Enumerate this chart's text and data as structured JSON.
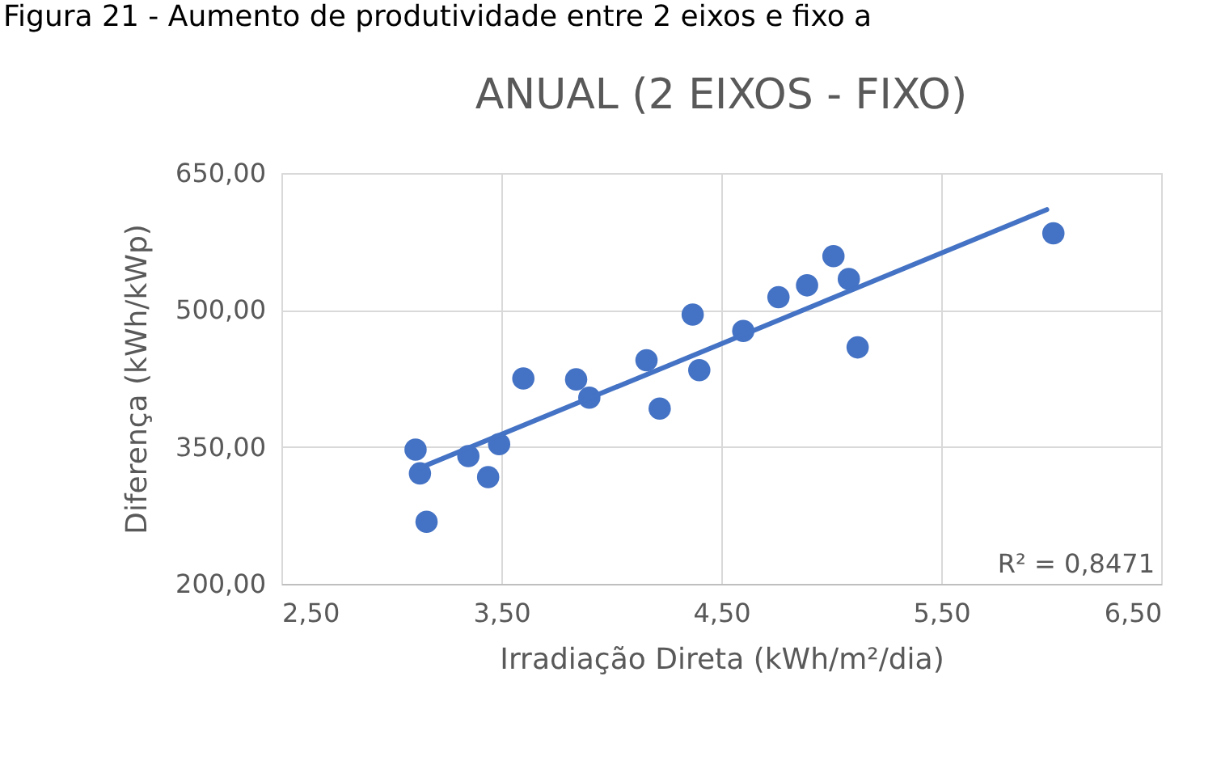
{
  "chart_data": {
    "type": "scatter",
    "title": "ANUAL (2 EIXOS - FIXO)",
    "xlabel": "Irradiação Direta (kWh/m²/dia)",
    "ylabel": "Diferença (kWh/kWp)",
    "annotations": [
      "Figura 21 - Aumento de produtividade entre 2 eixos e fixo a",
      "R² = 0,8471"
    ],
    "series": [
      {
        "color": "#4472c4",
        "marker": "circle",
        "x": [
          3.11,
          3.13,
          3.16,
          3.35,
          3.44,
          3.49,
          3.6,
          3.84,
          3.9,
          4.16,
          4.22,
          4.37,
          4.4,
          4.6,
          4.76,
          4.89,
          5.01,
          5.08,
          5.12,
          6.01
        ],
        "values": [
          347,
          321,
          268,
          340,
          317,
          353,
          425,
          424,
          404,
          445,
          392,
          495,
          434,
          477,
          514,
          527,
          559,
          534,
          459,
          584
        ]
      },
      {
        "type": "line",
        "color": "#4472c4",
        "x": [
          3.13,
          5.98
        ],
        "values": [
          327,
          610
        ]
      }
    ],
    "grid": true,
    "xlim": [
      2.5,
      6.5
    ],
    "xticks": [
      {
        "value": 2.5,
        "label": "2,50"
      },
      {
        "value": 3.5,
        "label": "3,50"
      },
      {
        "value": 4.5,
        "label": "4,50"
      },
      {
        "value": 5.5,
        "label": "5,50"
      },
      {
        "value": 6.5,
        "label": "6,50"
      }
    ],
    "ylim": [
      200,
      650
    ],
    "yticks": [
      {
        "value": 200,
        "label": "200,00"
      },
      {
        "value": 350,
        "label": "350,00"
      },
      {
        "value": 500,
        "label": "500,00"
      },
      {
        "value": 650,
        "label": "650,00"
      }
    ]
  }
}
